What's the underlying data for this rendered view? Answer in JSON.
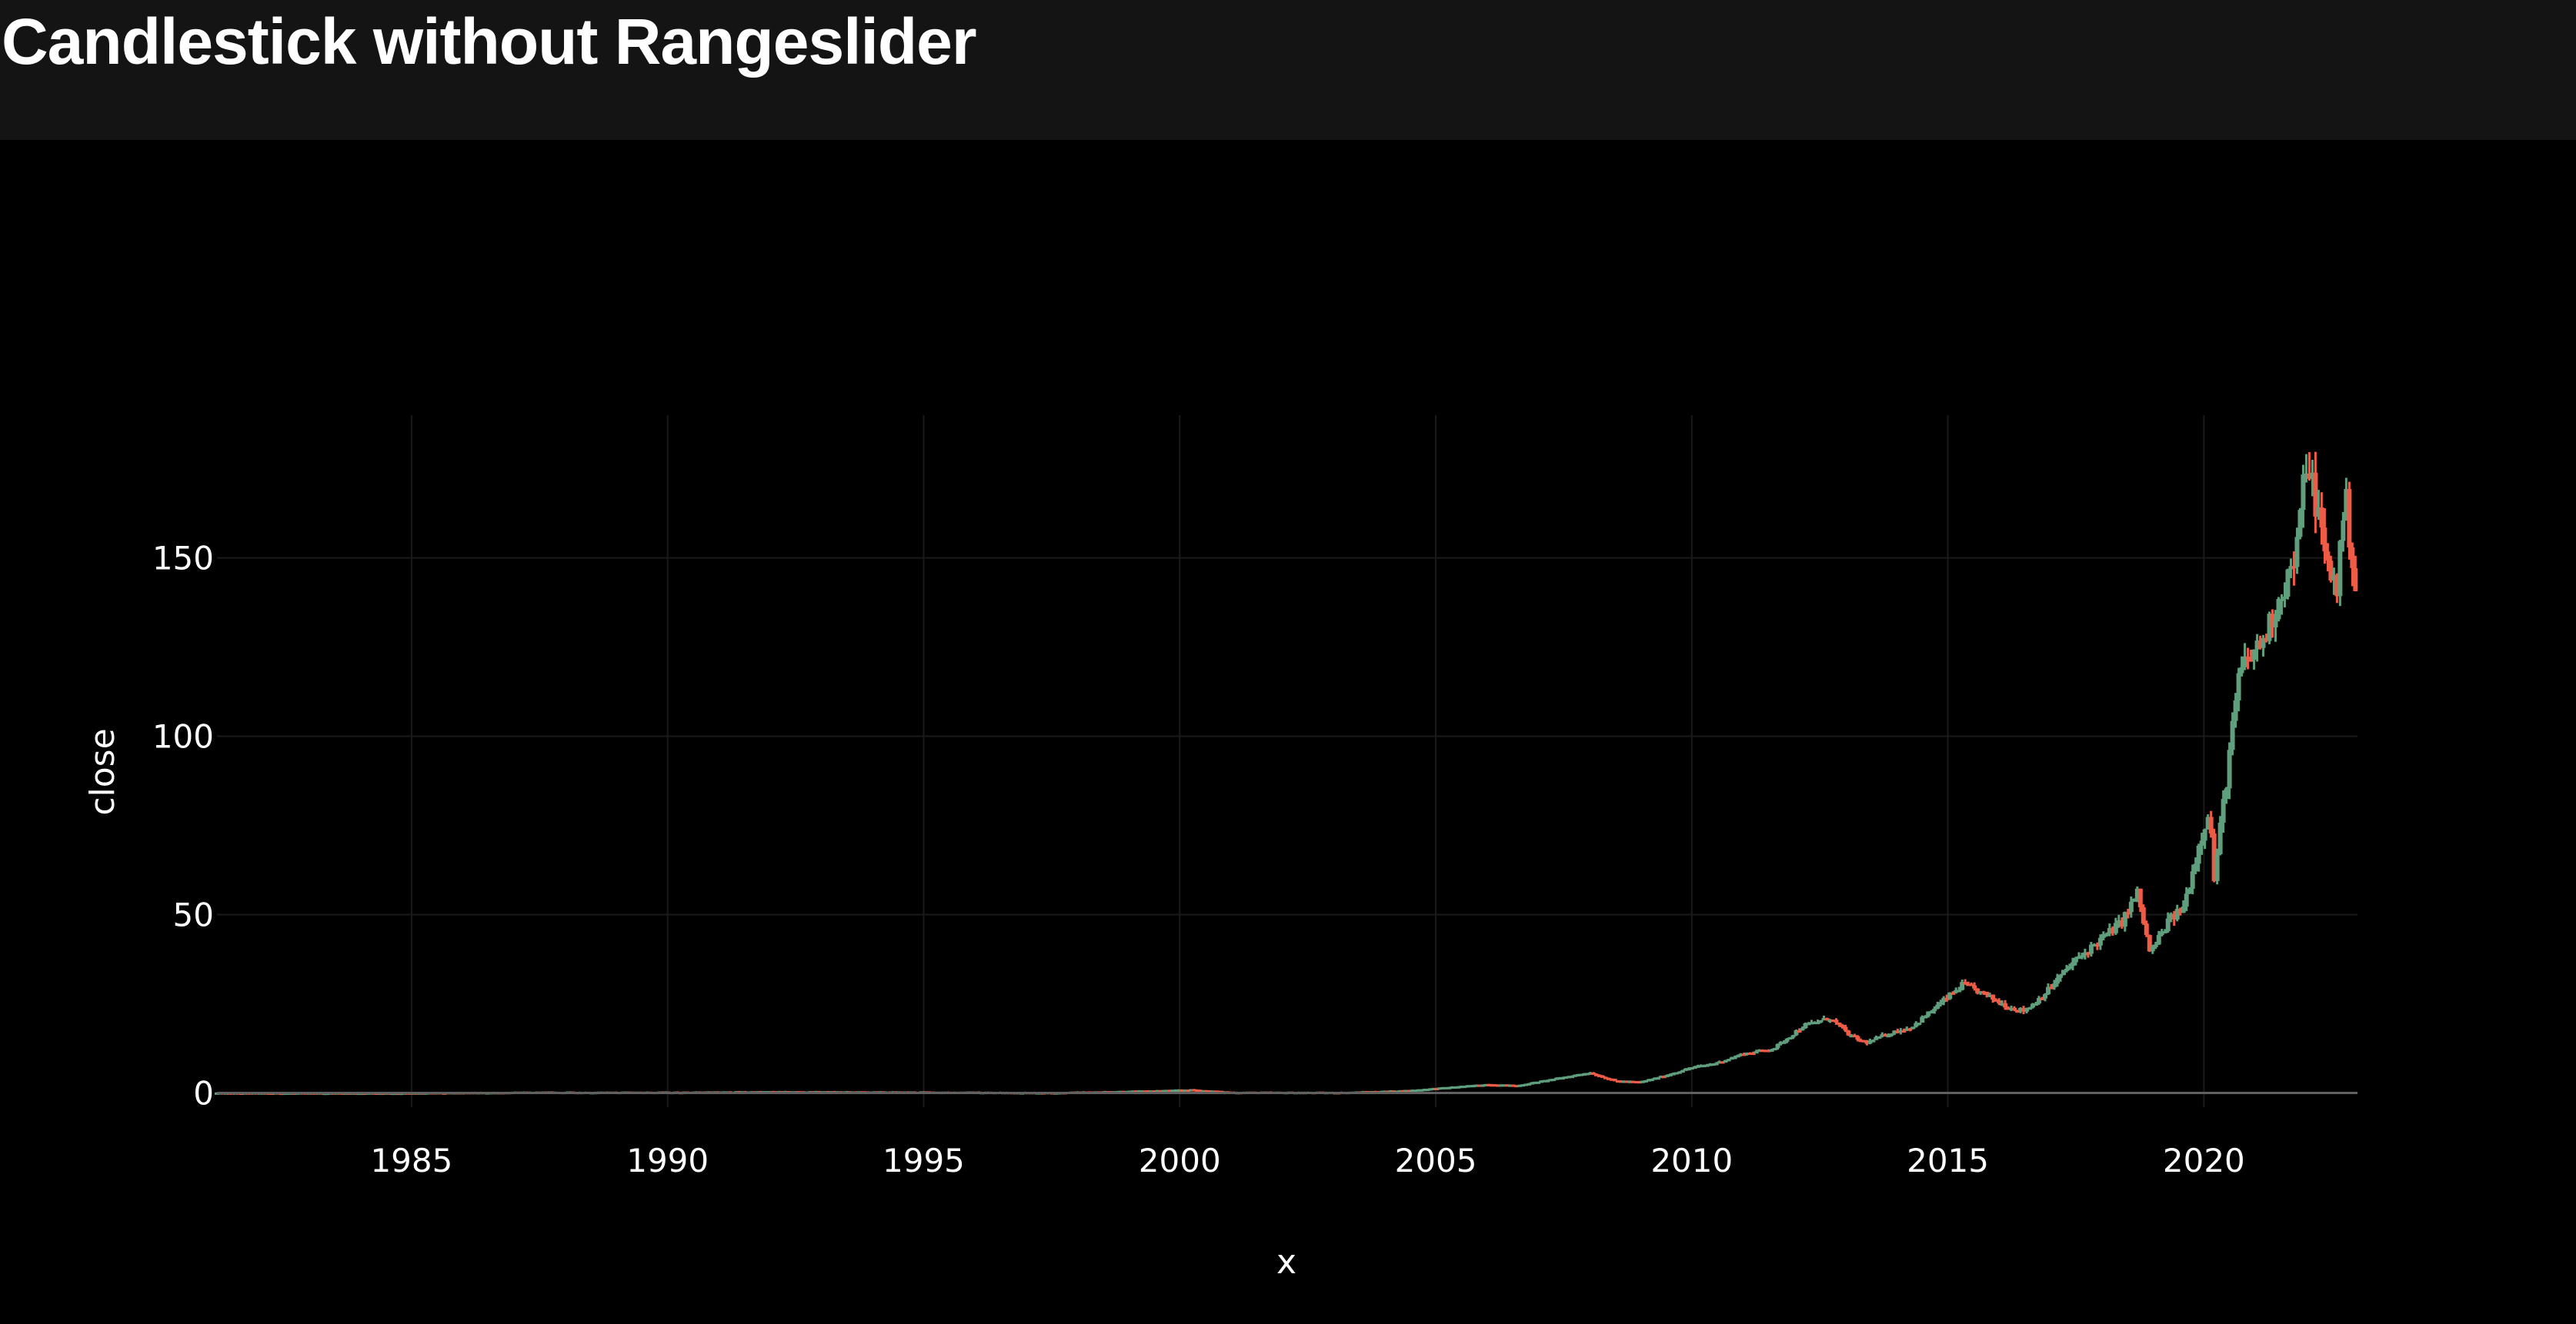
{
  "page": {
    "title": "Candlestick without Rangeslider"
  },
  "chart_data": {
    "type": "candlestick",
    "title": "",
    "xlabel": "x",
    "ylabel": "close",
    "xlim": [
      1981.2,
      2023.0
    ],
    "ylim": [
      -4,
      190
    ],
    "x_ticks": [
      1985,
      1990,
      1995,
      2000,
      2005,
      2010,
      2015,
      2020
    ],
    "x_tick_labels": [
      "1985",
      "1990",
      "1995",
      "2000",
      "2005",
      "2010",
      "2015",
      "2020"
    ],
    "y_ticks": [
      0,
      50,
      100,
      150
    ],
    "y_tick_labels": [
      "0",
      "50",
      "100",
      "150"
    ],
    "grid": true,
    "rangeslider": false,
    "increasing_color": "#5f9f7d",
    "decreasing_color": "#ef5b45",
    "background_color": "#000000",
    "header_color": "#141414",
    "series_approx": [
      {
        "x": 1981.2,
        "close": 0.1
      },
      {
        "x": 1985,
        "close": 0.1
      },
      {
        "x": 1987.5,
        "close": 0.3
      },
      {
        "x": 1990,
        "close": 0.3
      },
      {
        "x": 1992,
        "close": 0.45
      },
      {
        "x": 1995,
        "close": 0.35
      },
      {
        "x": 1997.5,
        "close": 0.2
      },
      {
        "x": 1999.5,
        "close": 0.7
      },
      {
        "x": 2000.2,
        "close": 1.0
      },
      {
        "x": 2001,
        "close": 0.3
      },
      {
        "x": 2003.2,
        "close": 0.25
      },
      {
        "x": 2004.5,
        "close": 0.8
      },
      {
        "x": 2005,
        "close": 1.4
      },
      {
        "x": 2006,
        "close": 2.5
      },
      {
        "x": 2006.6,
        "close": 2.2
      },
      {
        "x": 2007.5,
        "close": 4.5
      },
      {
        "x": 2008,
        "close": 5.8
      },
      {
        "x": 2008.5,
        "close": 3.5
      },
      {
        "x": 2009,
        "close": 3.2
      },
      {
        "x": 2009.5,
        "close": 5.0
      },
      {
        "x": 2010,
        "close": 7.2
      },
      {
        "x": 2010.5,
        "close": 8.5
      },
      {
        "x": 2011,
        "close": 11.0
      },
      {
        "x": 2011.6,
        "close": 12.5
      },
      {
        "x": 2012.2,
        "close": 19.0
      },
      {
        "x": 2012.7,
        "close": 21.0
      },
      {
        "x": 2013.1,
        "close": 16.0
      },
      {
        "x": 2013.4,
        "close": 14.0
      },
      {
        "x": 2013.8,
        "close": 16.5
      },
      {
        "x": 2014.3,
        "close": 18.5
      },
      {
        "x": 2014.8,
        "close": 24.5
      },
      {
        "x": 2015.3,
        "close": 30.5
      },
      {
        "x": 2015.8,
        "close": 27.0
      },
      {
        "x": 2016.2,
        "close": 24.0
      },
      {
        "x": 2016.5,
        "close": 23.0
      },
      {
        "x": 2016.9,
        "close": 28.0
      },
      {
        "x": 2017.4,
        "close": 36.0
      },
      {
        "x": 2017.9,
        "close": 42.0
      },
      {
        "x": 2018.4,
        "close": 48.0
      },
      {
        "x": 2018.7,
        "close": 56.0
      },
      {
        "x": 2018.95,
        "close": 39.0
      },
      {
        "x": 2019.3,
        "close": 48.0
      },
      {
        "x": 2019.6,
        "close": 52.0
      },
      {
        "x": 2019.95,
        "close": 72.0
      },
      {
        "x": 2020.1,
        "close": 80.0
      },
      {
        "x": 2020.2,
        "close": 60.0
      },
      {
        "x": 2020.5,
        "close": 95.0
      },
      {
        "x": 2020.7,
        "close": 118.0
      },
      {
        "x": 2020.9,
        "close": 122.0
      },
      {
        "x": 2021.2,
        "close": 128.0
      },
      {
        "x": 2021.5,
        "close": 140.0
      },
      {
        "x": 2021.8,
        "close": 150.0
      },
      {
        "x": 2022.0,
        "close": 178.0
      },
      {
        "x": 2022.2,
        "close": 165.0
      },
      {
        "x": 2022.4,
        "close": 148.0
      },
      {
        "x": 2022.6,
        "close": 142.0
      },
      {
        "x": 2022.75,
        "close": 168.0
      },
      {
        "x": 2022.9,
        "close": 150.0
      },
      {
        "x": 2023.0,
        "close": 136.0
      }
    ]
  }
}
